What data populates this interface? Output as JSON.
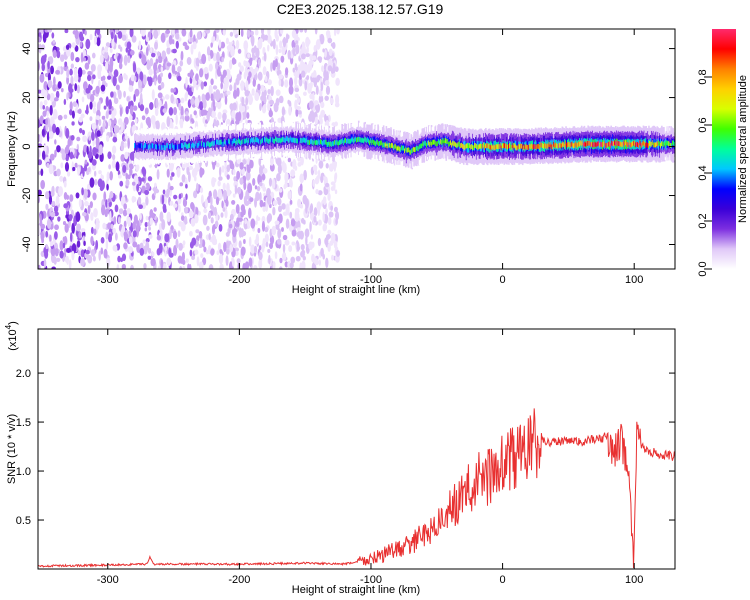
{
  "title": "C2E3.2025.138.12.57.G19",
  "chart_data": [
    {
      "type": "heatmap",
      "xlabel": "Height of straight line (km)",
      "ylabel": "Frequency (Hz)",
      "xlim": [
        -353,
        131
      ],
      "ylim": [
        -50,
        48
      ],
      "x_ticks": [
        -300,
        -200,
        -100,
        0,
        100
      ],
      "x_tick_labels": [
        "-300",
        "-200",
        "-100",
        "0",
        "100"
      ],
      "y_ticks": [
        -40,
        -20,
        0,
        20,
        40
      ],
      "y_tick_labels": [
        "-40",
        "-20",
        "0",
        "20",
        "40"
      ],
      "colorbar": {
        "label": "Normalized spectral amplitude",
        "range": [
          0,
          1
        ],
        "ticks": [
          0.0,
          0.2,
          0.4,
          0.6,
          0.8
        ],
        "tick_labels": [
          "0.0",
          "0.2",
          "0.4",
          "0.6",
          "0.8"
        ],
        "colors": [
          "#ffffff",
          "#e0c8f8",
          "#7d2fe0",
          "#3a00d8",
          "#0000ff",
          "#00c8ff",
          "#00ff9a",
          "#40ff00",
          "#d8ff00",
          "#ffd000",
          "#ff8000",
          "#ff0000",
          "#ff2a6d"
        ]
      },
      "ridge": {
        "x": [
          -280,
          -250,
          -200,
          -160,
          -130,
          -110,
          -90,
          -70,
          -60,
          -45,
          -30,
          -10,
          20,
          60,
          100,
          131
        ],
        "center_hz": [
          0,
          0,
          2,
          3,
          1,
          3,
          1,
          -2,
          1,
          2,
          0,
          0,
          0,
          1,
          1,
          1
        ],
        "peak_amplitude": [
          0.35,
          0.4,
          0.45,
          0.45,
          0.5,
          0.5,
          0.55,
          0.6,
          0.55,
          0.6,
          0.65,
          0.75,
          0.8,
          0.85,
          0.9,
          0.5
        ]
      },
      "noise_region_x": [
        -353,
        -125
      ]
    },
    {
      "type": "line",
      "xlabel": "Height of straight line (km)",
      "ylabel": "SNR (10 * v/v)",
      "y_multiplier_label": "(x10",
      "y_multiplier_exp": "4",
      "xlim": [
        -353,
        131
      ],
      "ylim": [
        0,
        2.45
      ],
      "x_ticks": [
        -300,
        -200,
        -100,
        0,
        100
      ],
      "x_tick_labels": [
        "-300",
        "-200",
        "-100",
        "0",
        "100"
      ],
      "y_ticks": [
        0.5,
        1.0,
        1.5,
        2.0
      ],
      "y_tick_labels": [
        "0.5",
        "1.0",
        "1.5",
        "2.0"
      ],
      "series": [
        {
          "color": "#e83030",
          "x": [
            -353,
            -300,
            -270,
            -268,
            -265,
            -200,
            -150,
            -120,
            -100,
            -90,
            -80,
            -70,
            -60,
            -50,
            -40,
            -30,
            -20,
            -10,
            0,
            10,
            20,
            30,
            40,
            50,
            60,
            70,
            80,
            85,
            90,
            95,
            98,
            100,
            102,
            105,
            110,
            120,
            131
          ],
          "y": [
            0.03,
            0.04,
            0.05,
            0.12,
            0.05,
            0.05,
            0.06,
            0.05,
            0.1,
            0.15,
            0.2,
            0.25,
            0.35,
            0.45,
            0.6,
            0.75,
            0.9,
            0.95,
            1.05,
            1.15,
            1.25,
            1.3,
            1.3,
            1.3,
            1.3,
            1.32,
            1.35,
            1.2,
            1.3,
            1.1,
            0.5,
            0.1,
            1.6,
            1.25,
            1.2,
            1.17,
            1.15
          ]
        }
      ]
    }
  ]
}
